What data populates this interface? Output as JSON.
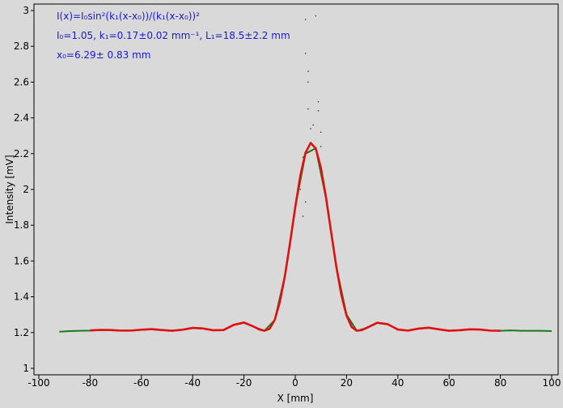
{
  "chart_data": {
    "type": "line",
    "annotations": [
      "I(x)=I₀sin²(k₁(x-x₀))/(k₁(x-x₀))²",
      "I₀=1.05,  k₁=0.17±0.02 mm⁻¹,   L₁=18.5±2.2 mm",
      "x₀=6.29±  0.83 mm"
    ],
    "xlabel": "X [mm]",
    "ylabel": "Intensity [mV]",
    "xlim": [
      -100,
      100
    ],
    "xticks": [
      -100,
      -80,
      -60,
      -40,
      -20,
      0,
      20,
      40,
      60,
      80,
      100
    ],
    "ylim": [
      1,
      3
    ],
    "yticks": [
      1,
      1.2,
      1.4,
      1.6,
      1.8,
      2,
      2.2,
      2.4,
      2.6,
      2.8,
      3
    ],
    "series": [
      {
        "color": "#1a7a1a",
        "mode": "line",
        "x": [
          -92,
          -88,
          -84,
          -80,
          -76,
          -72,
          -68,
          -64,
          -60,
          -56,
          -52,
          -48,
          -44,
          -40,
          -36,
          -32,
          -28,
          -24,
          -20,
          -16,
          -12,
          -8,
          -4,
          0,
          4,
          8,
          12,
          16,
          20,
          24,
          28,
          32,
          36,
          40,
          44,
          48,
          52,
          56,
          60,
          64,
          68,
          72,
          76,
          80,
          84,
          88,
          92,
          96,
          100
        ],
        "values": [
          1.205,
          1.208,
          1.21,
          1.211,
          1.214,
          1.214,
          1.211,
          1.211,
          1.215,
          1.218,
          1.214,
          1.21,
          1.215,
          1.225,
          1.222,
          1.213,
          1.213,
          1.242,
          1.255,
          1.231,
          1.21,
          1.27,
          1.52,
          1.9,
          2.2,
          2.23,
          1.95,
          1.57,
          1.3,
          1.21,
          1.226,
          1.254,
          1.246,
          1.217,
          1.211,
          1.221,
          1.226,
          1.218,
          1.21,
          1.213,
          1.218,
          1.217,
          1.211,
          1.21,
          1.212,
          1.21,
          1.21,
          1.21,
          1.208
        ]
      },
      {
        "color": "#e01010",
        "mode": "line",
        "x": [
          -80,
          -76,
          -72,
          -68,
          -64,
          -60,
          -56,
          -52,
          -48,
          -44,
          -40,
          -36,
          -32,
          -28,
          -24,
          -20,
          -16,
          -14,
          -12,
          -10,
          -8,
          -6,
          -4,
          -2,
          0,
          2,
          4,
          6,
          8,
          10,
          12,
          14,
          16,
          18,
          20,
          22,
          24,
          26,
          28,
          32,
          36,
          40,
          44,
          48,
          52,
          56,
          60,
          64,
          68,
          72,
          76,
          80
        ],
        "values": [
          1.212,
          1.215,
          1.214,
          1.211,
          1.211,
          1.216,
          1.219,
          1.214,
          1.21,
          1.216,
          1.226,
          1.223,
          1.213,
          1.214,
          1.243,
          1.256,
          1.232,
          1.217,
          1.21,
          1.221,
          1.271,
          1.371,
          1.519,
          1.704,
          1.901,
          2.078,
          2.205,
          2.26,
          2.229,
          2.121,
          1.955,
          1.761,
          1.57,
          1.409,
          1.295,
          1.231,
          1.21,
          1.214,
          1.227,
          1.255,
          1.247,
          1.217,
          1.211,
          1.222,
          1.227,
          1.218,
          1.21,
          1.213,
          1.218,
          1.217,
          1.211,
          1.21
        ]
      },
      {
        "color": "#1a4a1a",
        "mode": "markers",
        "x": [
          4,
          4,
          5,
          5,
          5,
          6,
          8,
          9,
          9,
          10,
          3,
          2,
          4,
          7,
          10,
          3
        ],
        "values": [
          2.95,
          2.76,
          2.66,
          2.6,
          2.45,
          2.34,
          2.97,
          2.49,
          2.44,
          2.24,
          2.18,
          2.0,
          1.93,
          2.36,
          2.32,
          1.85
        ]
      }
    ]
  }
}
